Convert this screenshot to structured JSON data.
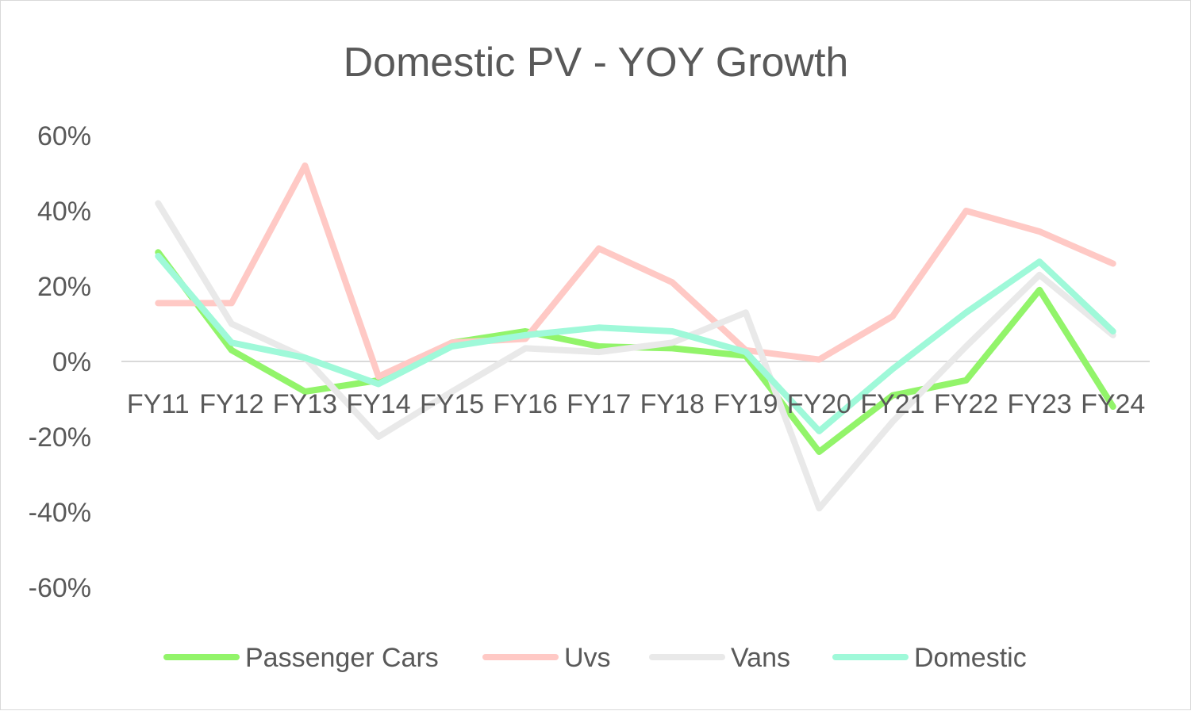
{
  "chart_data": {
    "type": "line",
    "title": "Domestic PV - YOY Growth",
    "xlabel": "",
    "ylabel": "",
    "categories": [
      "FY11",
      "FY12",
      "FY13",
      "FY14",
      "FY15",
      "FY16",
      "FY17",
      "FY18",
      "FY19",
      "FY20",
      "FY21",
      "FY22",
      "FY23",
      "FY24"
    ],
    "ylim": [
      -60,
      60
    ],
    "yticks": [
      60,
      40,
      20,
      0,
      -20,
      -40,
      -60
    ],
    "ytick_labels": [
      "60%",
      "40%",
      "20%",
      "0%",
      "-20%",
      "-40%",
      "-60%"
    ],
    "grid": false,
    "legend_position": "bottom",
    "series": [
      {
        "name": "Passenger Cars",
        "color": "#92f46a",
        "values": [
          29,
          3,
          -8,
          -5,
          5,
          8,
          4,
          3.5,
          1.5,
          -24,
          -9,
          -5,
          19,
          -12
        ]
      },
      {
        "name": "Uvs",
        "color": "#ffc9c5",
        "values": [
          15.5,
          15.5,
          52,
          -4,
          5,
          6,
          30,
          21,
          3,
          0.5,
          12,
          40,
          34.5,
          26
        ]
      },
      {
        "name": "Vans",
        "color": "#e9e9e9",
        "values": [
          42,
          10,
          1,
          -20,
          -8,
          3.5,
          2.5,
          5,
          13,
          -39,
          -16,
          4,
          23,
          7
        ]
      },
      {
        "name": "Domestic",
        "color": "#9ff9d9",
        "values": [
          28,
          5,
          1,
          -6,
          4,
          7,
          9,
          8,
          2.5,
          -18.5,
          -2,
          13,
          26.5,
          8
        ]
      }
    ]
  }
}
